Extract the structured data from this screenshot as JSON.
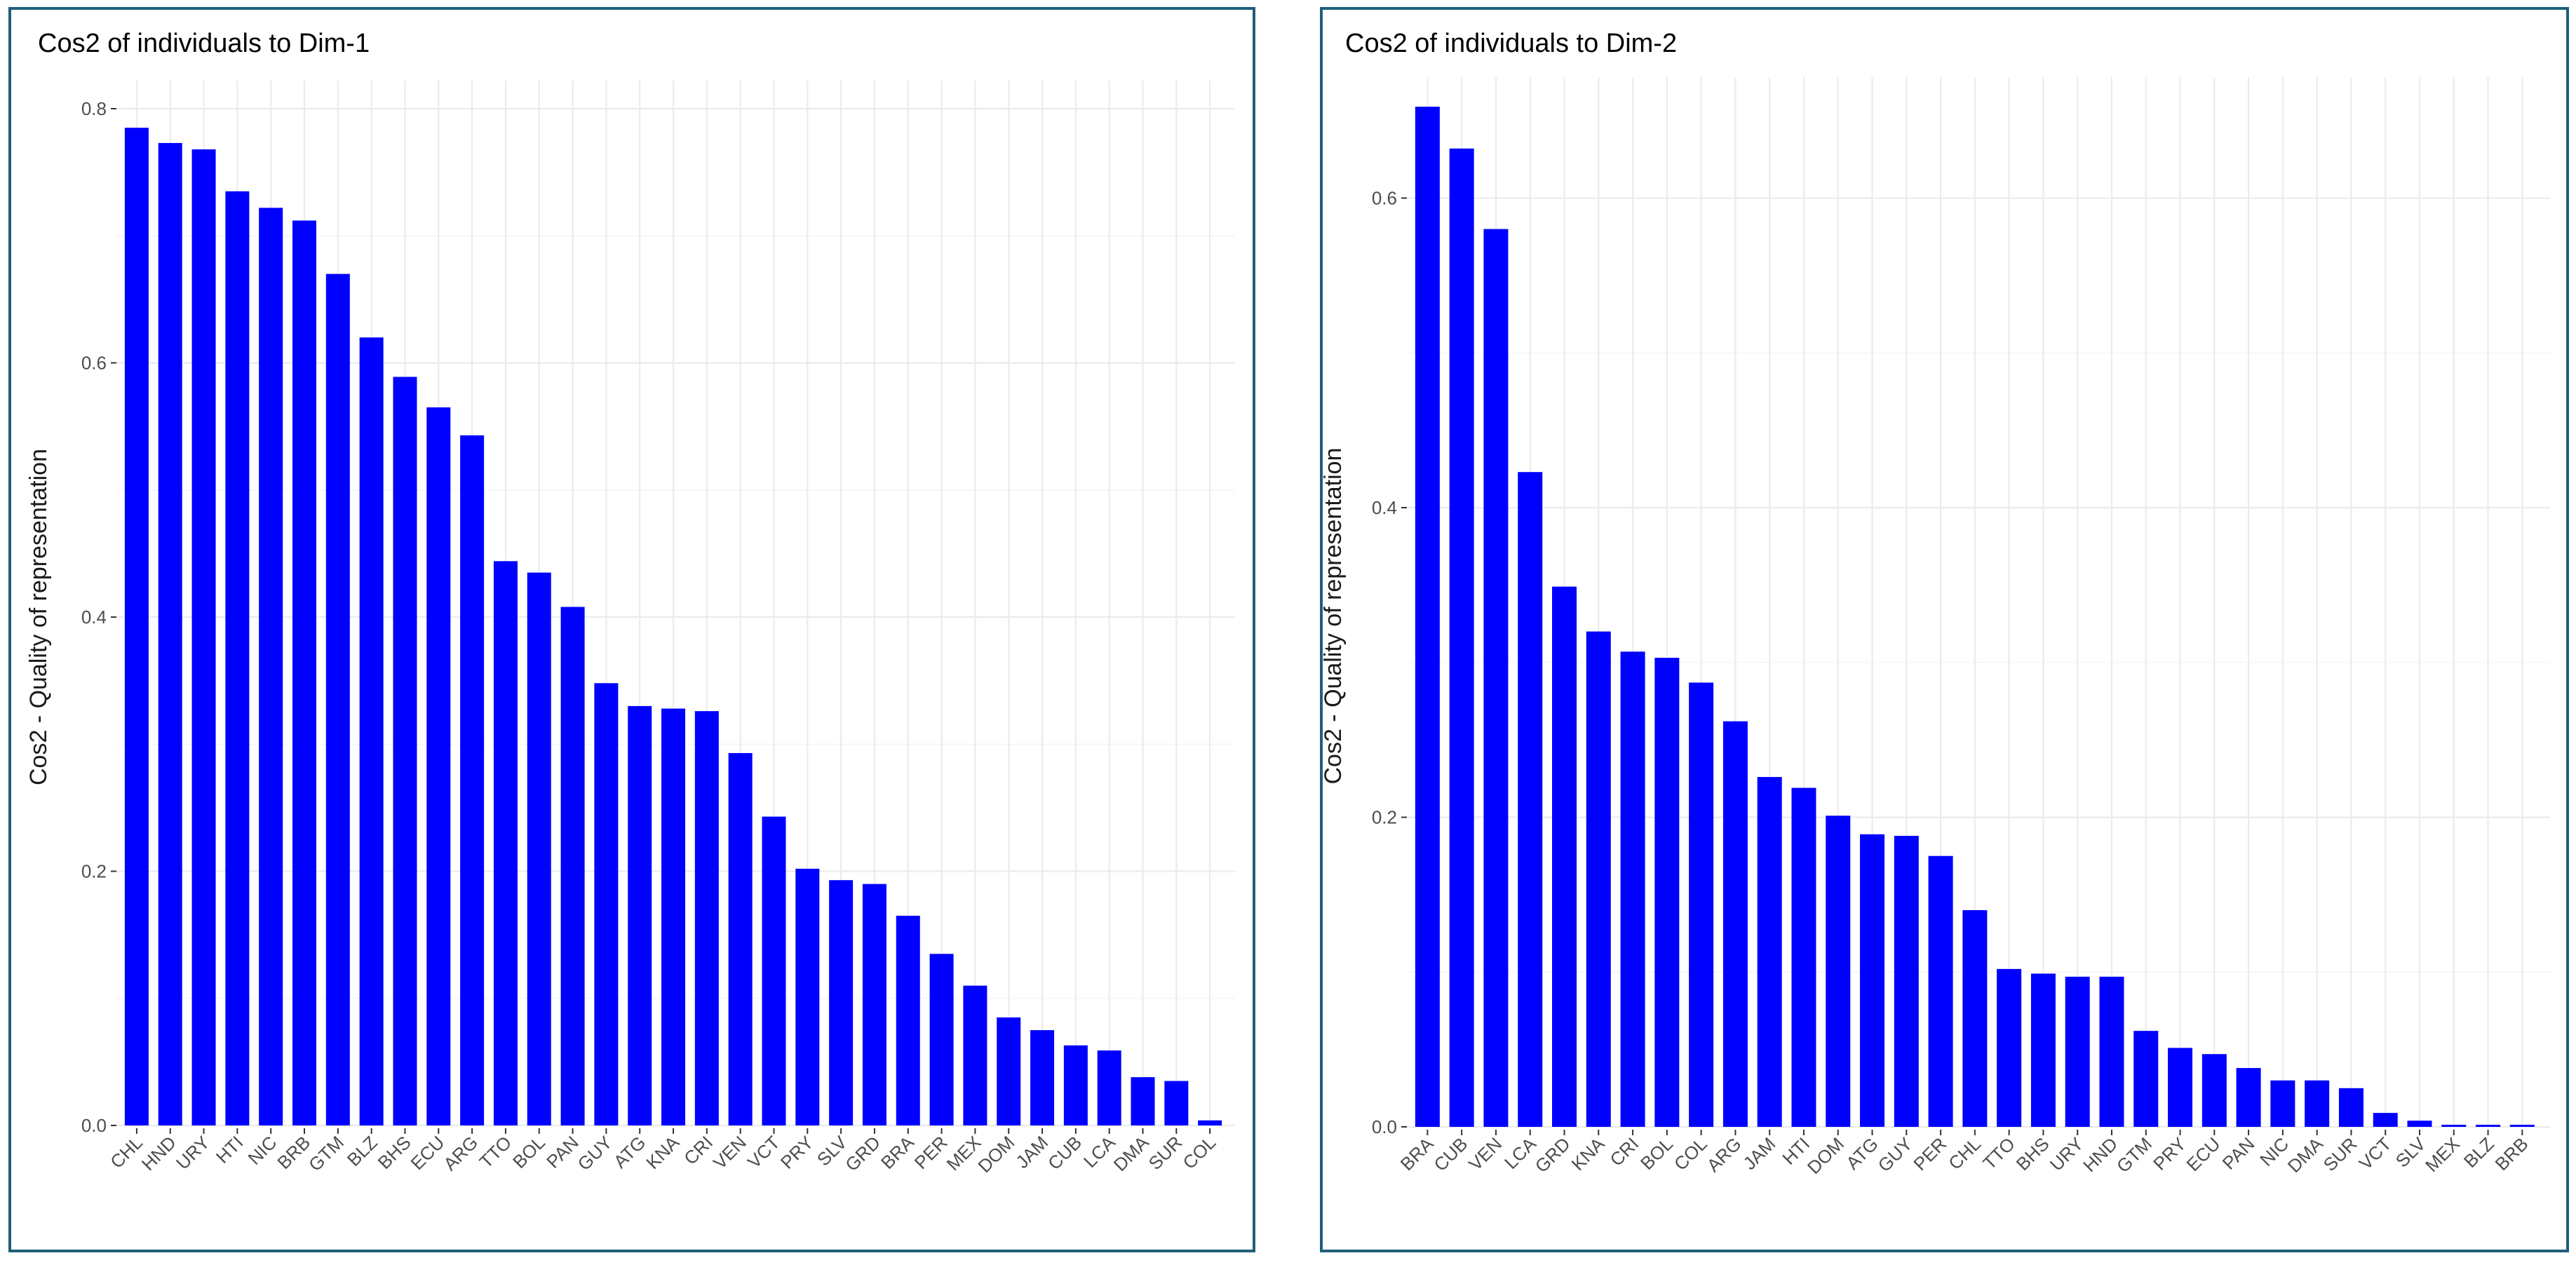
{
  "chart_data": [
    {
      "type": "bar",
      "title": "Cos2 of individuals to Dim-1",
      "ylabel": "Cos2 - Quality of representation",
      "xlabel": "",
      "ylim": [
        0,
        0.8
      ],
      "yticks": [
        "0.0",
        "0.2",
        "0.4",
        "0.6",
        "0.8"
      ],
      "bar_color": "#0000ff",
      "categories": [
        "CHL",
        "HND",
        "URY",
        "HTI",
        "NIC",
        "BRB",
        "GTM",
        "BLZ",
        "BHS",
        "ECU",
        "ARG",
        "TTO",
        "BOL",
        "PAN",
        "GUY",
        "ATG",
        "KNA",
        "CRI",
        "VEN",
        "VCT",
        "PRY",
        "SLV",
        "GRD",
        "BRA",
        "PER",
        "MEX",
        "DOM",
        "JAM",
        "CUB",
        "LCA",
        "DMA",
        "SUR",
        "COL"
      ],
      "values": [
        0.785,
        0.773,
        0.768,
        0.735,
        0.722,
        0.712,
        0.67,
        0.62,
        0.589,
        0.565,
        0.543,
        0.444,
        0.435,
        0.408,
        0.348,
        0.33,
        0.328,
        0.326,
        0.293,
        0.243,
        0.202,
        0.193,
        0.19,
        0.165,
        0.135,
        0.11,
        0.085,
        0.075,
        0.063,
        0.059,
        0.038,
        0.035,
        0.004
      ]
    },
    {
      "type": "bar",
      "title": "Cos2 of individuals to Dim-2",
      "ylabel": "Cos2 - Quality of representation",
      "xlabel": "",
      "ylim": [
        0,
        0.66
      ],
      "yticks": [
        "0.0",
        "0.2",
        "0.4",
        "0.6"
      ],
      "bar_color": "#0000ff",
      "categories": [
        "BRA",
        "CUB",
        "VEN",
        "LCA",
        "GRD",
        "KNA",
        "CRI",
        "BOL",
        "COL",
        "ARG",
        "JAM",
        "HTI",
        "DOM",
        "ATG",
        "GUY",
        "PER",
        "CHL",
        "TTO",
        "BHS",
        "URY",
        "HND",
        "GTM",
        "PRY",
        "ECU",
        "PAN",
        "NIC",
        "DMA",
        "SUR",
        "VCT",
        "SLV",
        "MEX",
        "BLZ",
        "BRB"
      ],
      "values": [
        0.659,
        0.632,
        0.58,
        0.423,
        0.349,
        0.32,
        0.307,
        0.303,
        0.287,
        0.262,
        0.226,
        0.219,
        0.201,
        0.189,
        0.188,
        0.175,
        0.14,
        0.102,
        0.099,
        0.097,
        0.097,
        0.062,
        0.051,
        0.047,
        0.038,
        0.03,
        0.03,
        0.025,
        0.009,
        0.004,
        0.001,
        0.001,
        0.001
      ]
    }
  ]
}
